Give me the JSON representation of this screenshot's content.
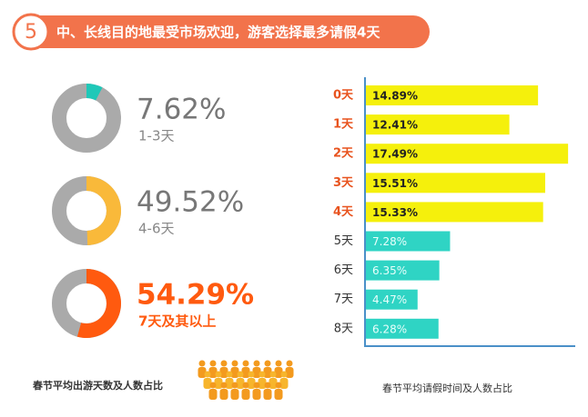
{
  "header": {
    "number": "5",
    "title": "中、长线目的地最受市场欢迎，游客选择最多请假4天"
  },
  "caption": "春节平均出游天数及人数占比",
  "chart_data": [
    {
      "type": "donut",
      "categories": [
        "1-3天"
      ],
      "values": [
        7.62
      ],
      "value_labels": [
        "7.62%"
      ],
      "color": "#1fc8b8",
      "label_color": "#777777"
    },
    {
      "type": "donut",
      "categories": [
        "4-6天"
      ],
      "values": [
        49.52
      ],
      "value_labels": [
        "49.52%"
      ],
      "color": "#f9b93a",
      "label_color": "#777777"
    },
    {
      "type": "donut",
      "categories": [
        "7天及其以上"
      ],
      "values": [
        54.29
      ],
      "value_labels": [
        "54.29%"
      ],
      "color": "#ff5a0f",
      "label_color": "#ff5a0f"
    },
    {
      "type": "hbar",
      "title": "春节平均请假时间及人数占比",
      "categories": [
        "0天",
        "1天",
        "2天",
        "3天",
        "4天",
        "5天",
        "6天",
        "7天",
        "8天"
      ],
      "values": [
        14.89,
        12.41,
        17.49,
        15.51,
        15.33,
        7.28,
        6.35,
        4.47,
        6.28
      ],
      "value_labels": [
        "14.89%",
        "12.41%",
        "17.49%",
        "15.51%",
        "15.33%",
        "7.28%",
        "6.35%",
        "4.47%",
        "6.28%"
      ],
      "colors": [
        "#f5f00c",
        "#f5f00c",
        "#f5f00c",
        "#f5f00c",
        "#f5f00c",
        "#2fd4c4",
        "#2fd4c4",
        "#2fd4c4",
        "#2fd4c4"
      ],
      "category_colors": [
        "#e8531e",
        "#e8531e",
        "#e8531e",
        "#e8531e",
        "#e8531e",
        "#333333",
        "#333333",
        "#333333",
        "#333333"
      ]
    }
  ]
}
